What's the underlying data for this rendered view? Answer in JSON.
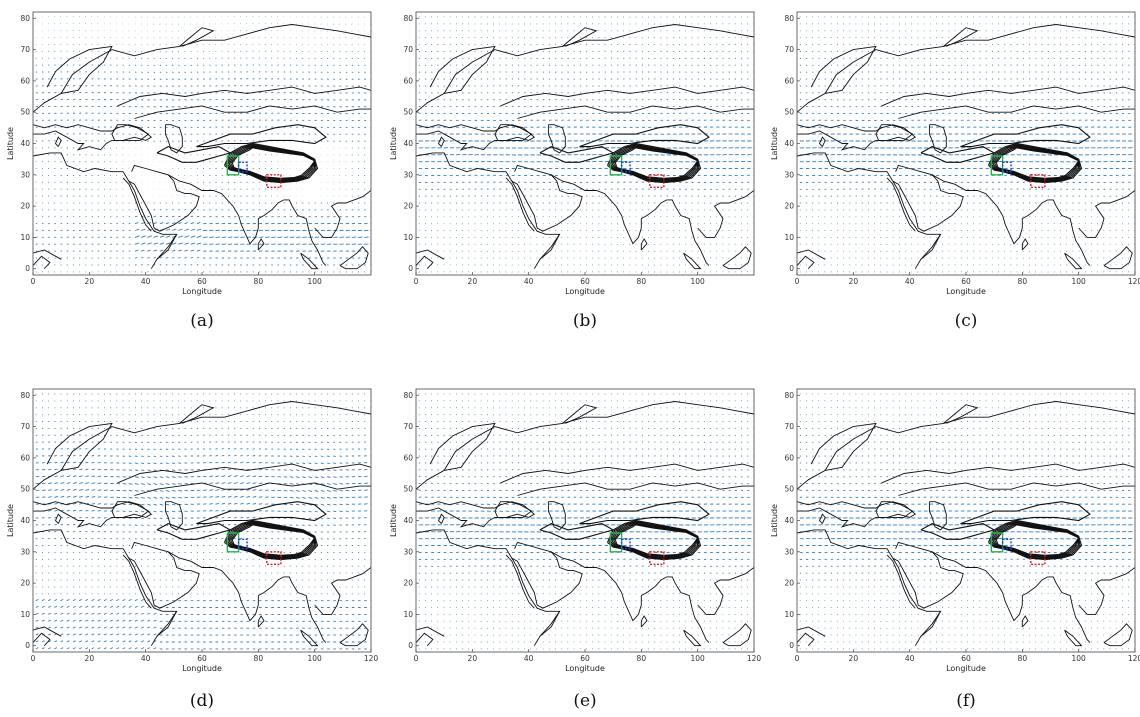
{
  "colors": {
    "arrow": "#2f7fc1",
    "coast": "#111111",
    "box_green": "#23b14d",
    "box_blue": "#1b3fe0",
    "box_red": "#e01b1b"
  },
  "chart_data": [
    {
      "type": "quiver",
      "panel_label": "(a)",
      "xlabel": "Longitude",
      "ylabel": "Latitude",
      "xlim": [
        0,
        120
      ],
      "ylim": [
        -2,
        82
      ],
      "xticks": [
        "0",
        "20",
        "40",
        "60",
        "80",
        "100"
      ],
      "yticks": [
        "0",
        "10",
        "20",
        "30",
        "40",
        "50",
        "60",
        "70",
        "80"
      ],
      "wind_regime": "monsoon",
      "regions": [
        {
          "color": "green",
          "lon": [
            69,
            73
          ],
          "lat": [
            30,
            36
          ]
        },
        {
          "color": "blue",
          "lon": [
            73,
            76
          ],
          "lat": [
            31,
            34
          ]
        },
        {
          "color": "red",
          "lon": [
            83,
            88
          ],
          "lat": [
            26,
            30
          ]
        }
      ]
    },
    {
      "type": "quiver",
      "panel_label": "(b)",
      "xlabel": "Longitude",
      "ylabel": "Latitude",
      "xlim": [
        0,
        120
      ],
      "ylim": [
        -2,
        82
      ],
      "xticks": [
        "0",
        "20",
        "40",
        "60",
        "80",
        "100"
      ],
      "yticks": [
        "0",
        "10",
        "20",
        "30",
        "40",
        "50",
        "60",
        "70",
        "80"
      ],
      "wind_regime": "westerly",
      "regions": [
        {
          "color": "green",
          "lon": [
            69,
            73
          ],
          "lat": [
            30,
            36
          ]
        },
        {
          "color": "blue",
          "lon": [
            73,
            76
          ],
          "lat": [
            31,
            34
          ]
        },
        {
          "color": "red",
          "lon": [
            83,
            88
          ],
          "lat": [
            26,
            30
          ]
        }
      ]
    },
    {
      "type": "quiver",
      "panel_label": "(c)",
      "xlabel": "Longitude",
      "ylabel": "Latitude",
      "xlim": [
        0,
        120
      ],
      "ylim": [
        -2,
        82
      ],
      "xticks": [
        "0",
        "20",
        "40",
        "60",
        "80",
        "100",
        "120"
      ],
      "yticks": [
        "0",
        "10",
        "20",
        "30",
        "40",
        "50",
        "60",
        "70",
        "80"
      ],
      "wind_regime": "westerly",
      "regions": [
        {
          "color": "green",
          "lon": [
            69,
            73
          ],
          "lat": [
            30,
            36
          ]
        },
        {
          "color": "blue",
          "lon": [
            73,
            76
          ],
          "lat": [
            31,
            34
          ]
        },
        {
          "color": "red",
          "lon": [
            83,
            88
          ],
          "lat": [
            26,
            30
          ]
        }
      ]
    },
    {
      "type": "quiver",
      "panel_label": "(d)",
      "xlabel": "Longitude",
      "ylabel": "Latitude",
      "xlim": [
        0,
        120
      ],
      "ylim": [
        -2,
        82
      ],
      "xticks": [
        "0",
        "20",
        "40",
        "60",
        "80",
        "100",
        "120"
      ],
      "yticks": [
        "0",
        "10",
        "20",
        "30",
        "40",
        "50",
        "60",
        "70",
        "80"
      ],
      "wind_regime": "mixed",
      "regions": [
        {
          "color": "green",
          "lon": [
            69,
            73
          ],
          "lat": [
            30,
            36
          ]
        },
        {
          "color": "blue",
          "lon": [
            73,
            76
          ],
          "lat": [
            31,
            34
          ]
        },
        {
          "color": "red",
          "lon": [
            83,
            88
          ],
          "lat": [
            26,
            30
          ]
        }
      ]
    },
    {
      "type": "quiver",
      "panel_label": "(e)",
      "xlabel": "Longitude",
      "ylabel": "Latitude",
      "xlim": [
        0,
        120
      ],
      "ylim": [
        -2,
        82
      ],
      "xticks": [
        "0",
        "20",
        "40",
        "60",
        "80",
        "100",
        "120"
      ],
      "yticks": [
        "0",
        "10",
        "20",
        "30",
        "40",
        "50",
        "60",
        "70",
        "80"
      ],
      "wind_regime": "westerly",
      "regions": [
        {
          "color": "green",
          "lon": [
            69,
            73
          ],
          "lat": [
            30,
            36
          ]
        },
        {
          "color": "blue",
          "lon": [
            73,
            76
          ],
          "lat": [
            31,
            34
          ]
        },
        {
          "color": "red",
          "lon": [
            83,
            88
          ],
          "lat": [
            26,
            30
          ]
        }
      ]
    },
    {
      "type": "quiver",
      "panel_label": "(f)",
      "xlabel": "Longitude",
      "ylabel": "Latitude",
      "xlim": [
        0,
        120
      ],
      "ylim": [
        -2,
        82
      ],
      "xticks": [
        "0",
        "20",
        "40",
        "60",
        "80",
        "100",
        "120"
      ],
      "yticks": [
        "0",
        "10",
        "20",
        "30",
        "40",
        "50",
        "60",
        "70",
        "80"
      ],
      "wind_regime": "westerly",
      "regions": [
        {
          "color": "green",
          "lon": [
            69,
            73
          ],
          "lat": [
            30,
            36
          ]
        },
        {
          "color": "blue",
          "lon": [
            73,
            76
          ],
          "lat": [
            31,
            34
          ]
        },
        {
          "color": "red",
          "lon": [
            83,
            88
          ],
          "lat": [
            26,
            30
          ]
        }
      ]
    }
  ]
}
